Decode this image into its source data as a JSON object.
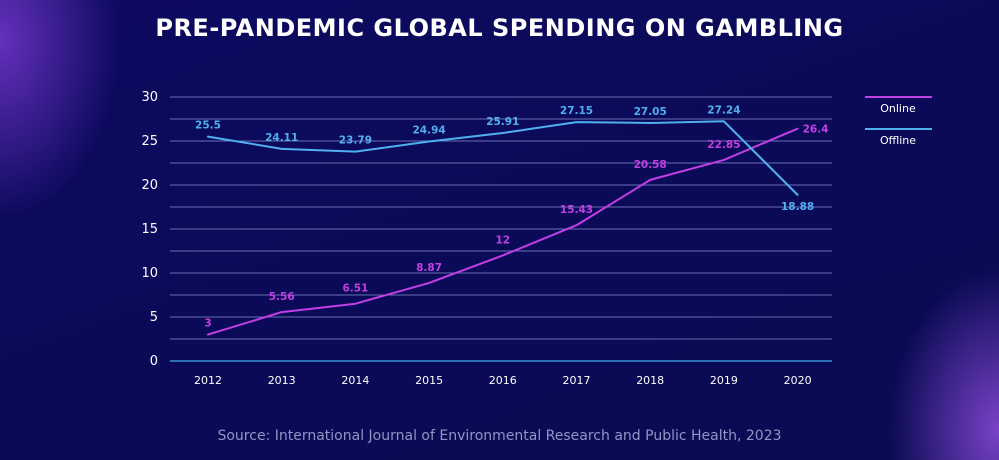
{
  "chart_data": {
    "type": "line",
    "title": "PRE-PANDEMIC GLOBAL SPENDING ON GAMBLING",
    "xlabel": "",
    "ylabel": "",
    "categories": [
      "2012",
      "2013",
      "2014",
      "2015",
      "2016",
      "2017",
      "2018",
      "2019",
      "2020"
    ],
    "ylim": [
      0,
      30
    ],
    "yticks": [
      "0",
      "5",
      "10",
      "15",
      "20",
      "25",
      "30"
    ],
    "grid": true,
    "legend_position": "right",
    "series": [
      {
        "name": "Online",
        "color": "#c23fe6",
        "values": [
          3,
          5.56,
          6.51,
          8.87,
          12,
          15.43,
          20.58,
          22.85,
          26.4
        ],
        "labels": [
          "3",
          "5.56",
          "6.51",
          "8.87",
          "12",
          "15.43",
          "20.58",
          "22.85",
          "26.4"
        ]
      },
      {
        "name": "Offline",
        "color": "#4fb0ef",
        "values": [
          25.5,
          24.11,
          23.79,
          24.94,
          25.91,
          27.15,
          27.05,
          27.24,
          18.88
        ],
        "labels": [
          "25.5",
          "24.11",
          "23.79",
          "24.94",
          "25.91",
          "27.15",
          "27.05",
          "27.24",
          "18.88"
        ]
      }
    ],
    "source": "Source: International Journal of Environmental Research and Public Health, 2023"
  }
}
